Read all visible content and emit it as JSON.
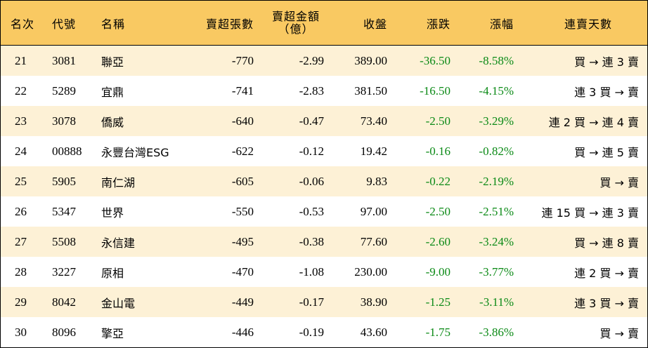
{
  "header": {
    "rank": "名次",
    "code": "代號",
    "name": "名稱",
    "shares": "賣超張數",
    "amount_line1": "賣超金額",
    "amount_line2": "（億）",
    "close": "收盤",
    "change": "漲跌",
    "pct": "漲幅",
    "days": "連賣天數"
  },
  "colors": {
    "header_bg": "#f9c962",
    "odd_row_bg": "#fdf1d6",
    "negative_text": "#0b8a16"
  },
  "rows": [
    {
      "rank": "21",
      "code": "3081",
      "name": "聯亞",
      "shares": "-770",
      "amount": "-2.99",
      "close": "389.00",
      "change": "-36.50",
      "pct": "-8.58%",
      "days": "買 → 連 3 賣"
    },
    {
      "rank": "22",
      "code": "5289",
      "name": "宜鼎",
      "shares": "-741",
      "amount": "-2.83",
      "close": "381.50",
      "change": "-16.50",
      "pct": "-4.15%",
      "days": "連 3 買 → 賣"
    },
    {
      "rank": "23",
      "code": "3078",
      "name": "僑威",
      "shares": "-640",
      "amount": "-0.47",
      "close": "73.40",
      "change": "-2.50",
      "pct": "-3.29%",
      "days": "連 2 買 → 連 4 賣"
    },
    {
      "rank": "24",
      "code": "00888",
      "name": "永豐台灣ESG",
      "shares": "-622",
      "amount": "-0.12",
      "close": "19.42",
      "change": "-0.16",
      "pct": "-0.82%",
      "days": "買 → 連 5 賣"
    },
    {
      "rank": "25",
      "code": "5905",
      "name": "南仁湖",
      "shares": "-605",
      "amount": "-0.06",
      "close": "9.83",
      "change": "-0.22",
      "pct": "-2.19%",
      "days": "買 → 賣"
    },
    {
      "rank": "26",
      "code": "5347",
      "name": "世界",
      "shares": "-550",
      "amount": "-0.53",
      "close": "97.00",
      "change": "-2.50",
      "pct": "-2.51%",
      "days": "連 15 買 → 連 3 賣"
    },
    {
      "rank": "27",
      "code": "5508",
      "name": "永信建",
      "shares": "-495",
      "amount": "-0.38",
      "close": "77.60",
      "change": "-2.60",
      "pct": "-3.24%",
      "days": "買 → 連 8 賣"
    },
    {
      "rank": "28",
      "code": "3227",
      "name": "原相",
      "shares": "-470",
      "amount": "-1.08",
      "close": "230.00",
      "change": "-9.00",
      "pct": "-3.77%",
      "days": "連 2 買 → 賣"
    },
    {
      "rank": "29",
      "code": "8042",
      "name": "金山電",
      "shares": "-449",
      "amount": "-0.17",
      "close": "38.90",
      "change": "-1.25",
      "pct": "-3.11%",
      "days": "連 3 買 → 賣"
    },
    {
      "rank": "30",
      "code": "8096",
      "name": "擎亞",
      "shares": "-446",
      "amount": "-0.19",
      "close": "43.60",
      "change": "-1.75",
      "pct": "-3.86%",
      "days": "買 → 賣"
    }
  ]
}
